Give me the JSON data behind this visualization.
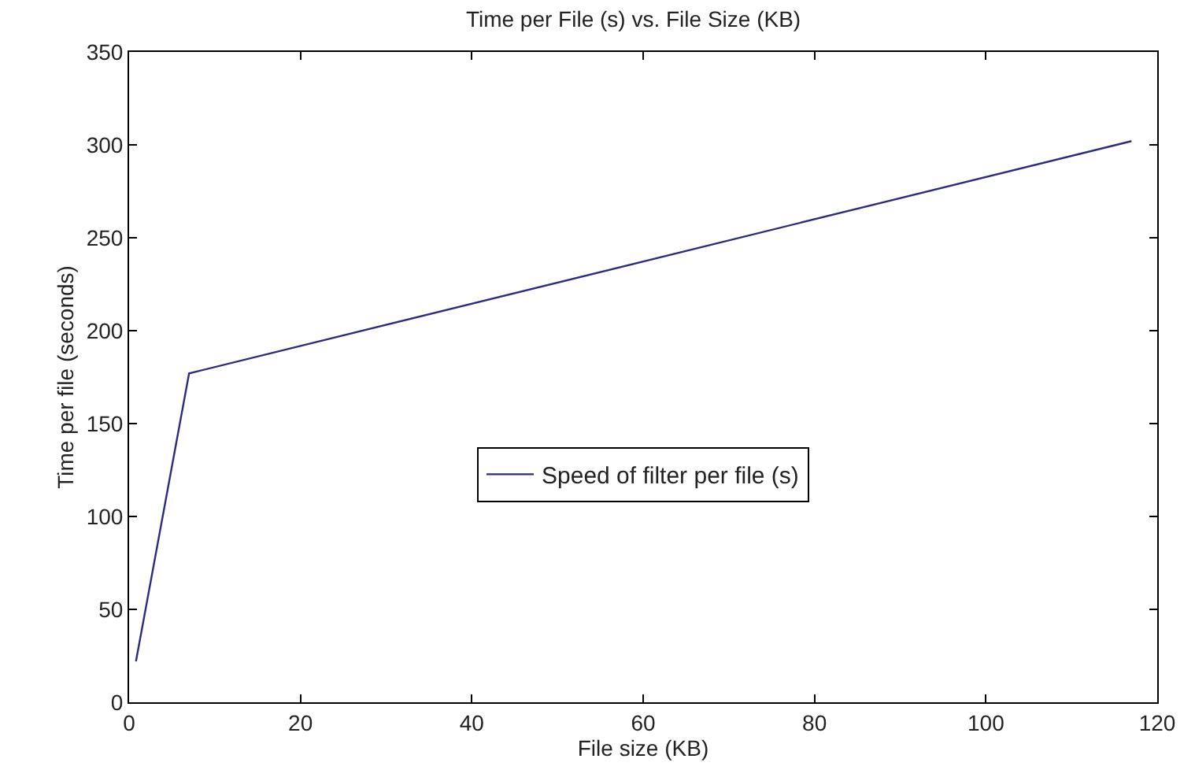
{
  "chart_data": {
    "type": "line",
    "title": "Time per File (s) vs. File Size (KB)",
    "xlabel": "File size (KB)",
    "ylabel": "Time per file (seconds)",
    "x": [
      0.8,
      7,
      117
    ],
    "series": [
      {
        "name": "Speed of filter per file (s)",
        "color": "#2b2b80",
        "values": [
          22,
          177,
          302
        ]
      }
    ],
    "xlim": [
      0,
      120
    ],
    "xticks": [
      0,
      20,
      40,
      60,
      80,
      100,
      120
    ],
    "ylim": [
      0,
      350
    ],
    "yticks": [
      0,
      50,
      100,
      150,
      200,
      250,
      300,
      350
    ],
    "legend": "center",
    "marker": "none",
    "line_style": "solid"
  }
}
